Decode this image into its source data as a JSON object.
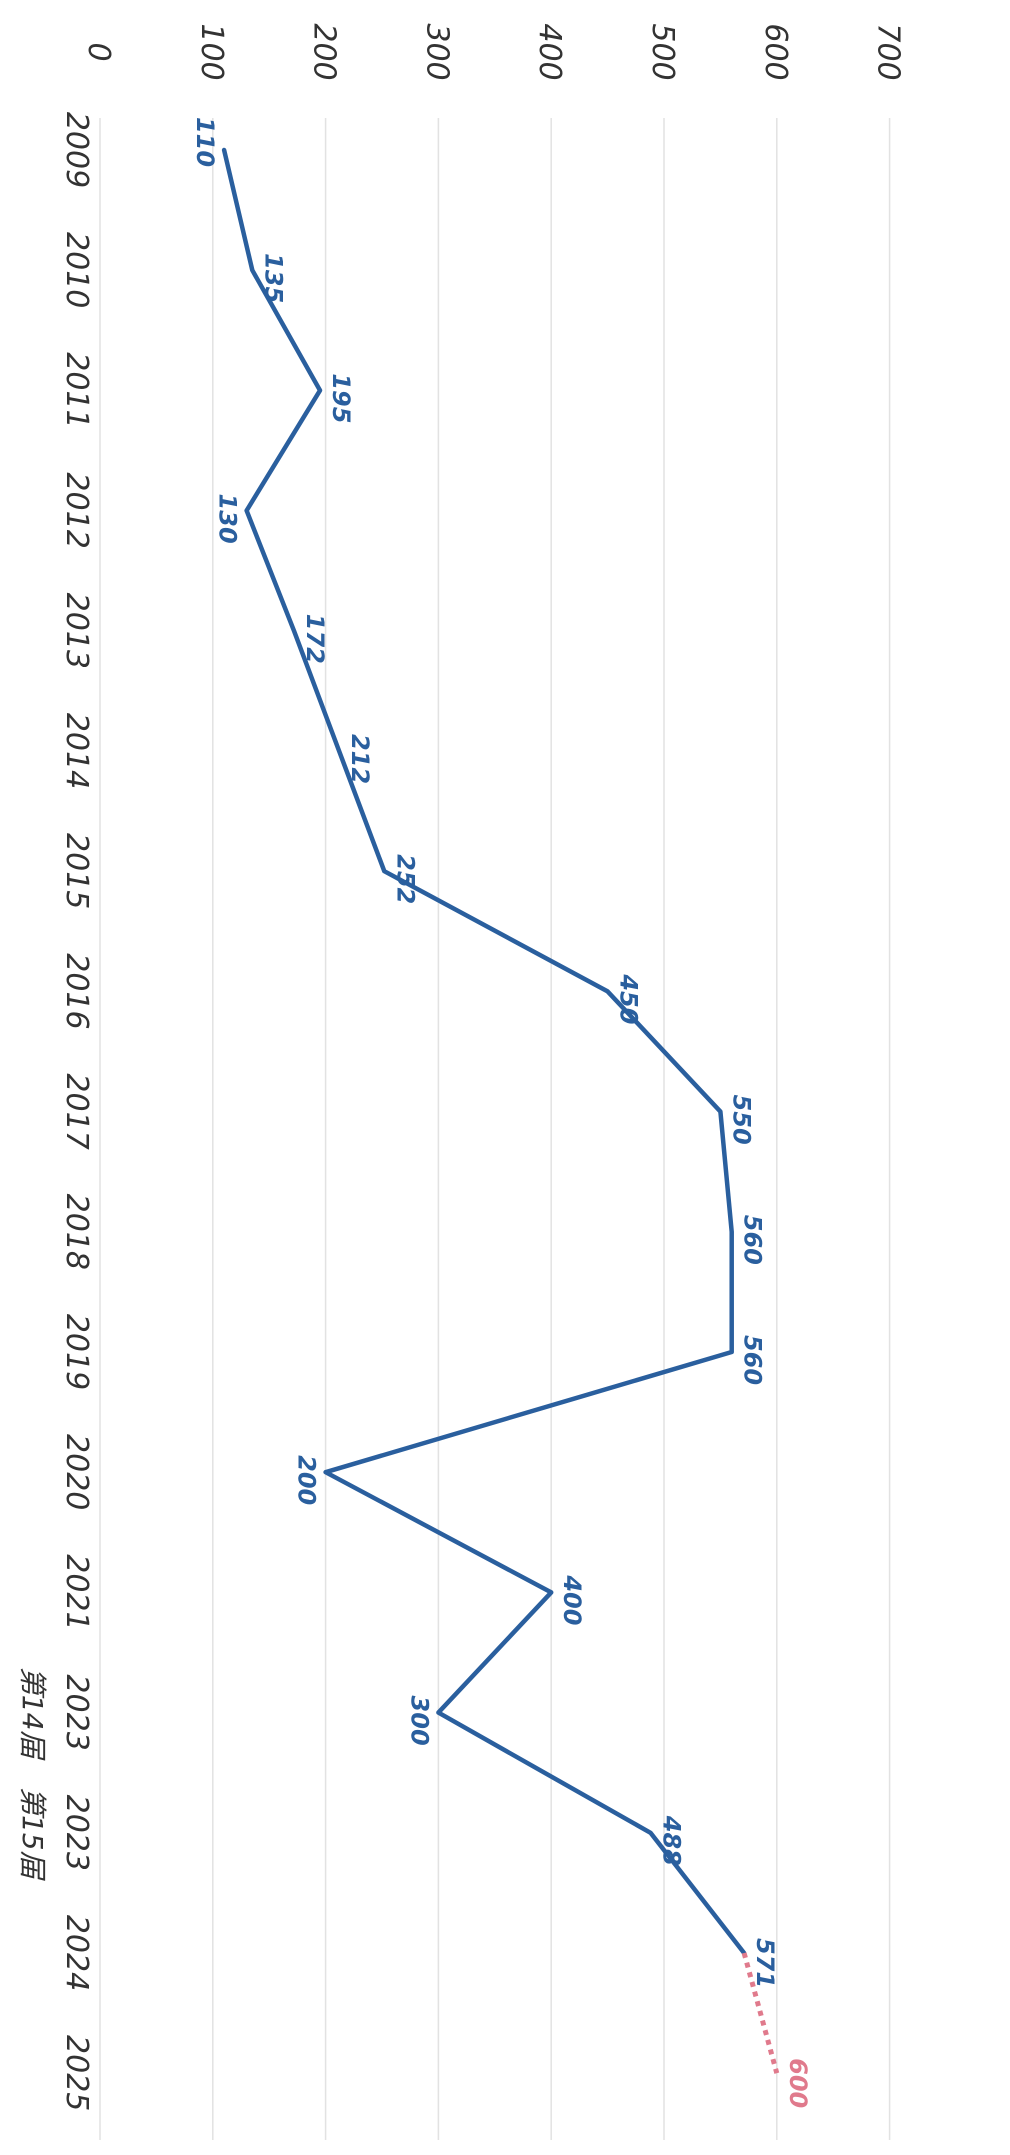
{
  "chart_data": {
    "type": "line",
    "title": "",
    "xlabel": "",
    "ylabel": "",
    "ylim": [
      0,
      700
    ],
    "y_ticks": [
      "0",
      "100",
      "200",
      "300",
      "400",
      "500",
      "600",
      "700"
    ],
    "grid": true,
    "orientation": "rotated-90-clockwise",
    "categories": [
      "2009",
      "2010",
      "2011",
      "2012",
      "2013",
      "2014",
      "2015",
      "2016",
      "2017",
      "2018",
      "2019",
      "2020",
      "2021",
      "2023",
      "2023",
      "2024",
      "2025"
    ],
    "category_sublabels": [
      "",
      "",
      "",
      "",
      "",
      "",
      "",
      "",
      "",
      "",
      "",
      "",
      "",
      "第14届",
      "第15届",
      "",
      ""
    ],
    "series": [
      {
        "color": "#2a5f9e",
        "style": "solid",
        "values": [
          110,
          135,
          195,
          130,
          172,
          212,
          252,
          450,
          550,
          560,
          560,
          200,
          400,
          300,
          488,
          571,
          null
        ],
        "labels": [
          "110",
          "135",
          "195",
          "130",
          "172",
          "212",
          "252",
          "450",
          "550",
          "560",
          "560",
          "200",
          "400",
          "300",
          "488",
          "571",
          ""
        ]
      },
      {
        "color": "#e07a8c",
        "style": "dotted",
        "values": [
          null,
          null,
          null,
          null,
          null,
          null,
          null,
          null,
          null,
          null,
          null,
          null,
          null,
          null,
          null,
          571,
          600
        ],
        "labels": [
          "",
          "",
          "",
          "",
          "",
          "",
          "",
          "",
          "",
          "",
          "",
          "",
          "",
          "",
          "",
          "",
          "600"
        ]
      }
    ]
  }
}
